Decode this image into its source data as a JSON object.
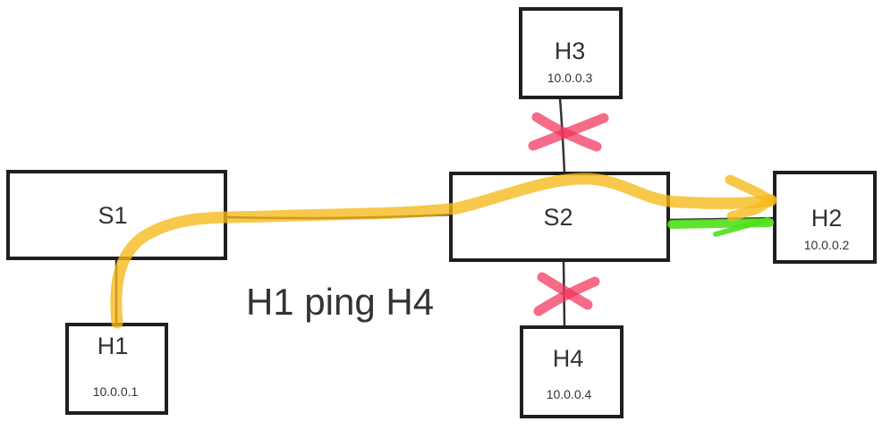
{
  "caption": "H1 ping H4",
  "nodes": {
    "s1": {
      "label": "S1"
    },
    "s2": {
      "label": "S2"
    },
    "h1": {
      "label": "H1",
      "ip": "10.0.0.1"
    },
    "h2": {
      "label": "H2",
      "ip": "10.0.0.2"
    },
    "h3": {
      "label": "H3",
      "ip": "10.0.0.3"
    },
    "h4": {
      "label": "H4",
      "ip": "10.0.0.4"
    }
  },
  "colors": {
    "path_highlight": "#f6b817",
    "blocked_mark": "#f2325a",
    "active_link": "#4ee01b",
    "outline": "#1f1f1f",
    "text": "#333333"
  }
}
